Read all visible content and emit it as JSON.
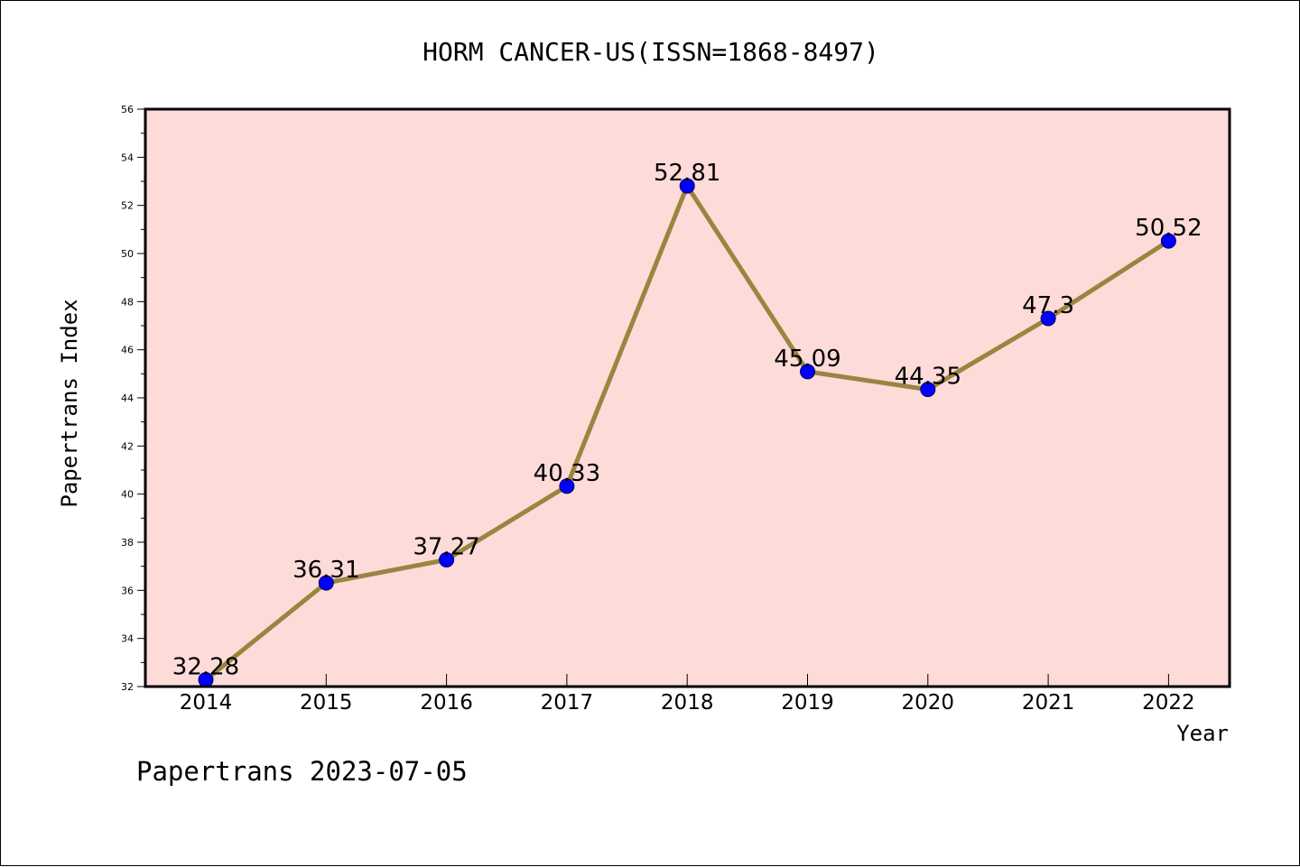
{
  "chart_data": {
    "type": "line",
    "title": "HORM CANCER-US(ISSN=1868-8497)",
    "xlabel": "Year",
    "ylabel": "Papertrans Index",
    "categories": [
      "2014",
      "2015",
      "2016",
      "2017",
      "2018",
      "2019",
      "2020",
      "2021",
      "2022"
    ],
    "values": [
      32.28,
      36.31,
      37.27,
      40.33,
      52.81,
      45.09,
      44.35,
      47.3,
      50.52
    ],
    "data_labels": [
      "32.28",
      "36.31",
      "37.27",
      "40.33",
      "52.81",
      "45.09",
      "44.35",
      "47.3",
      "50.52"
    ],
    "ylim": [
      32,
      56
    ],
    "yticks": [
      32,
      34,
      36,
      38,
      40,
      42,
      44,
      46,
      48,
      50,
      52,
      54,
      56
    ],
    "grid": false,
    "legend": "none",
    "colors": {
      "plot_background": "#fddbd9",
      "line": "#9a8540",
      "marker_fill": "#0000ff",
      "marker_edge": "#000060",
      "axis": "#000000"
    }
  },
  "footer": {
    "watermark": "Papertrans 2023-07-05"
  }
}
